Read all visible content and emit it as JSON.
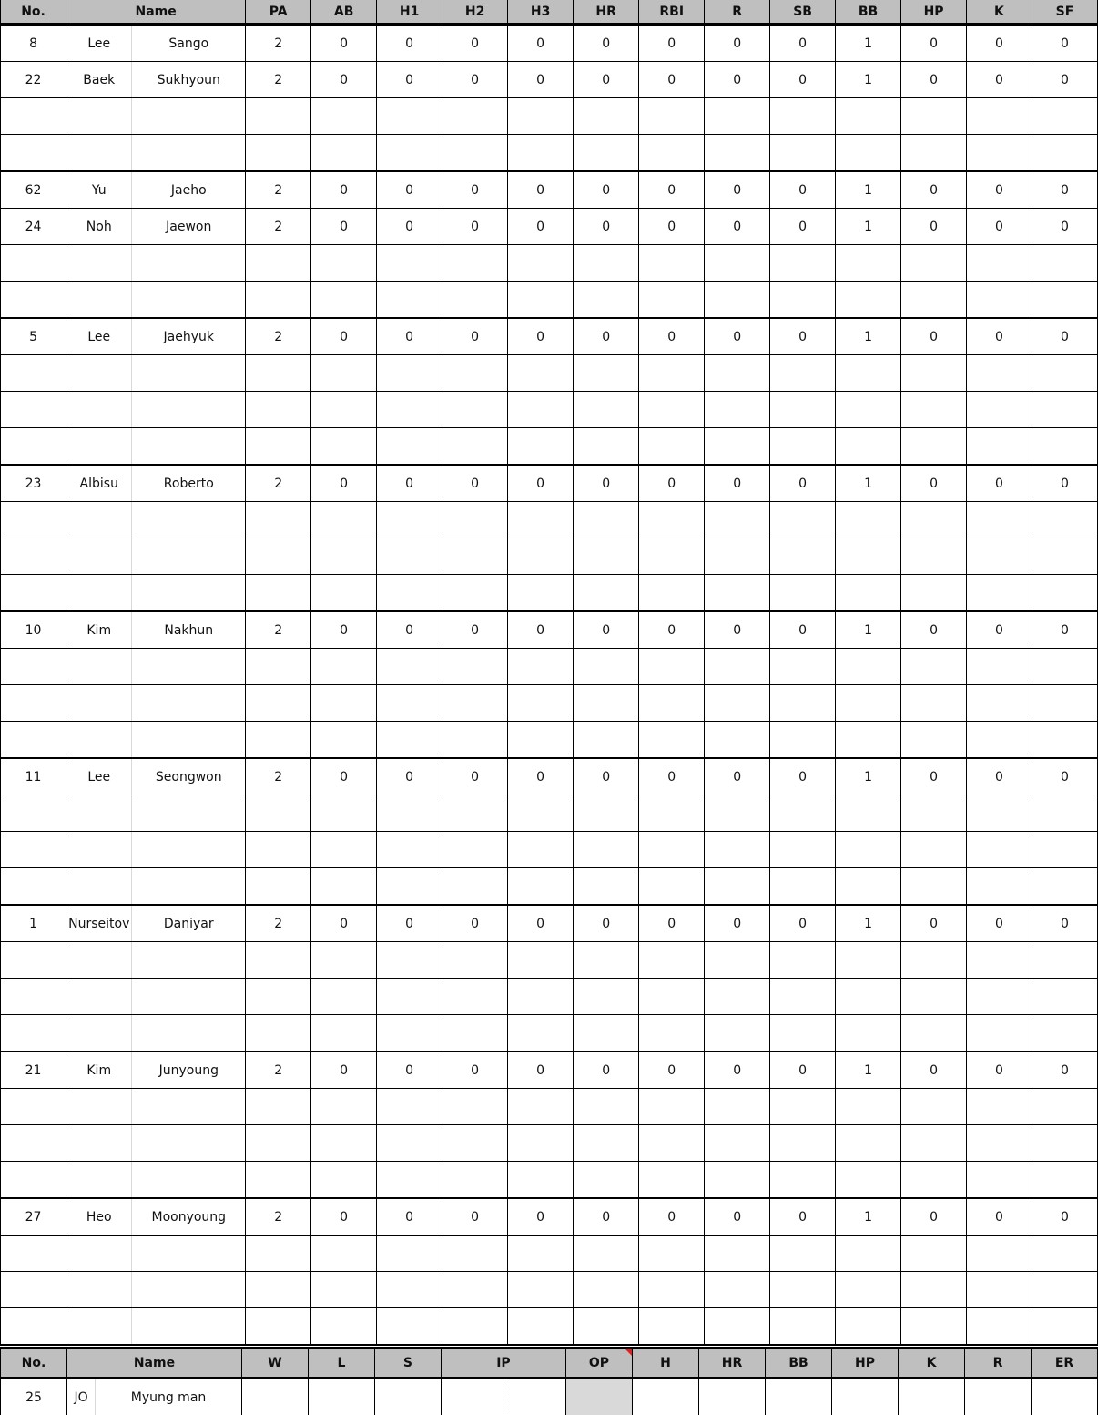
{
  "batting": {
    "headers": [
      "No.",
      "Name",
      "PA",
      "AB",
      "H1",
      "H2",
      "H3",
      "HR",
      "RBI",
      "R",
      "SB",
      "BB",
      "HP",
      "K",
      "SF"
    ],
    "groups": [
      [
        [
          "8",
          "Lee",
          "Sango",
          "2",
          "0",
          "0",
          "0",
          "0",
          "0",
          "0",
          "0",
          "0",
          "1",
          "0",
          "0",
          "0"
        ],
        [
          "22",
          "Baek",
          "Sukhyoun",
          "2",
          "0",
          "0",
          "0",
          "0",
          "0",
          "0",
          "0",
          "0",
          "1",
          "0",
          "0",
          "0"
        ],
        null,
        null
      ],
      [
        [
          "62",
          "Yu",
          "Jaeho",
          "2",
          "0",
          "0",
          "0",
          "0",
          "0",
          "0",
          "0",
          "0",
          "1",
          "0",
          "0",
          "0"
        ],
        [
          "24",
          "Noh",
          "Jaewon",
          "2",
          "0",
          "0",
          "0",
          "0",
          "0",
          "0",
          "0",
          "0",
          "1",
          "0",
          "0",
          "0"
        ],
        null,
        null
      ],
      [
        [
          "5",
          "Lee",
          "Jaehyuk",
          "2",
          "0",
          "0",
          "0",
          "0",
          "0",
          "0",
          "0",
          "0",
          "1",
          "0",
          "0",
          "0"
        ],
        null,
        null,
        null
      ],
      [
        [
          "23",
          "Albisu",
          "Roberto",
          "2",
          "0",
          "0",
          "0",
          "0",
          "0",
          "0",
          "0",
          "0",
          "1",
          "0",
          "0",
          "0"
        ],
        null,
        null,
        null
      ],
      [
        [
          "10",
          "Kim",
          "Nakhun",
          "2",
          "0",
          "0",
          "0",
          "0",
          "0",
          "0",
          "0",
          "0",
          "1",
          "0",
          "0",
          "0"
        ],
        null,
        null,
        null
      ],
      [
        [
          "11",
          "Lee",
          "Seongwon",
          "2",
          "0",
          "0",
          "0",
          "0",
          "0",
          "0",
          "0",
          "0",
          "1",
          "0",
          "0",
          "0"
        ],
        null,
        null,
        null
      ],
      [
        [
          "1",
          "Nurseitov",
          "Daniyar",
          "2",
          "0",
          "0",
          "0",
          "0",
          "0",
          "0",
          "0",
          "0",
          "1",
          "0",
          "0",
          "0"
        ],
        null,
        null,
        null
      ],
      [
        [
          "21",
          "Kim",
          "Junyoung",
          "2",
          "0",
          "0",
          "0",
          "0",
          "0",
          "0",
          "0",
          "0",
          "1",
          "0",
          "0",
          "0"
        ],
        null,
        null,
        null
      ],
      [
        [
          "27",
          "Heo",
          "Moonyoung",
          "2",
          "0",
          "0",
          "0",
          "0",
          "0",
          "0",
          "0",
          "0",
          "1",
          "0",
          "0",
          "0"
        ],
        null,
        null,
        null
      ]
    ]
  },
  "pitching": {
    "headers": [
      "No.",
      "Name",
      "W",
      "L",
      "S",
      "IP",
      "OP",
      "H",
      "HR",
      "BB",
      "HP",
      "K",
      "R",
      "ER"
    ],
    "rows": [
      [
        "25",
        "JO",
        "Myung man",
        "",
        "",
        "",
        "",
        "",
        "",
        "",
        "",
        "",
        "",
        "",
        "",
        "",
        ""
      ]
    ]
  },
  "colors": {
    "header_bg": "#bfbfbf",
    "op_cell_bg": "#d9d9d9",
    "comment_marker": "#e02020"
  }
}
